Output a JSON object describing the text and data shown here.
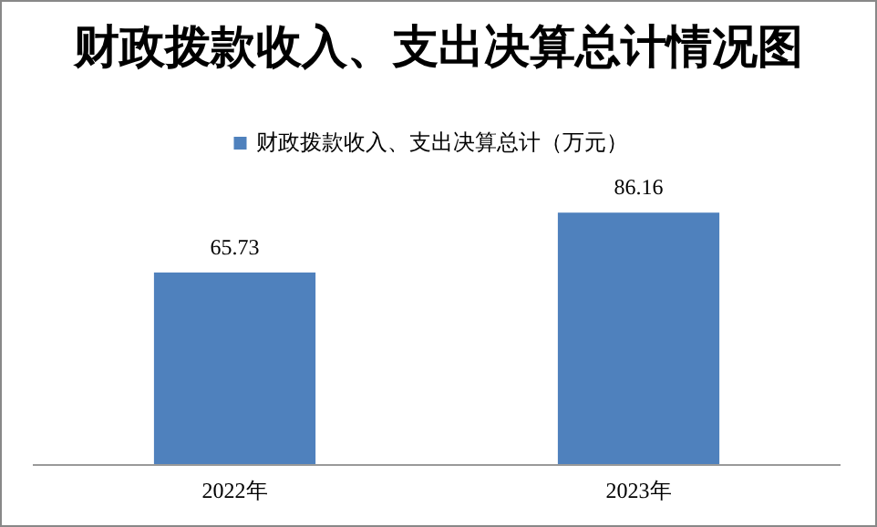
{
  "chart_data": {
    "type": "bar",
    "title": "财政拨款收入、支出决算总计情况图",
    "categories": [
      "2022年",
      "2023年"
    ],
    "series": [
      {
        "name": "财政拨款收入、支出决算总计（万元）",
        "color": "#4f81bd",
        "values": [
          65.73,
          86.16
        ]
      }
    ],
    "data_labels": true,
    "legend": "top",
    "grid": false
  }
}
